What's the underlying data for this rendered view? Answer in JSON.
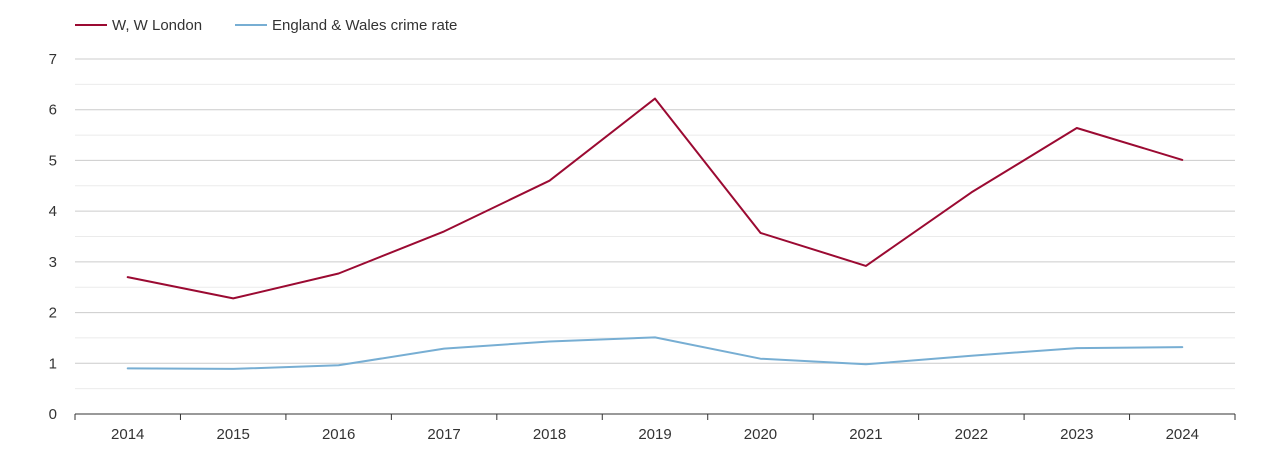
{
  "chart_data": {
    "type": "line",
    "title": "",
    "xlabel": "",
    "ylabel": "",
    "categories": [
      "2014",
      "2015",
      "2016",
      "2017",
      "2018",
      "2019",
      "2020",
      "2021",
      "2022",
      "2023",
      "2024"
    ],
    "ylim": [
      0,
      7
    ],
    "yticks": [
      0,
      1,
      2,
      3,
      4,
      5,
      6,
      7
    ],
    "grid": true,
    "legend_position": "top-left",
    "series": [
      {
        "name": "W, W London",
        "color": "#9b0a32",
        "values": [
          2.7,
          2.28,
          2.77,
          3.6,
          4.6,
          6.22,
          3.57,
          2.92,
          4.37,
          5.64,
          5.01
        ]
      },
      {
        "name": "England & Wales crime rate",
        "color": "#77aed3",
        "values": [
          0.9,
          0.89,
          0.96,
          1.29,
          1.43,
          1.51,
          1.09,
          0.98,
          1.15,
          1.3,
          1.32
        ]
      }
    ]
  }
}
